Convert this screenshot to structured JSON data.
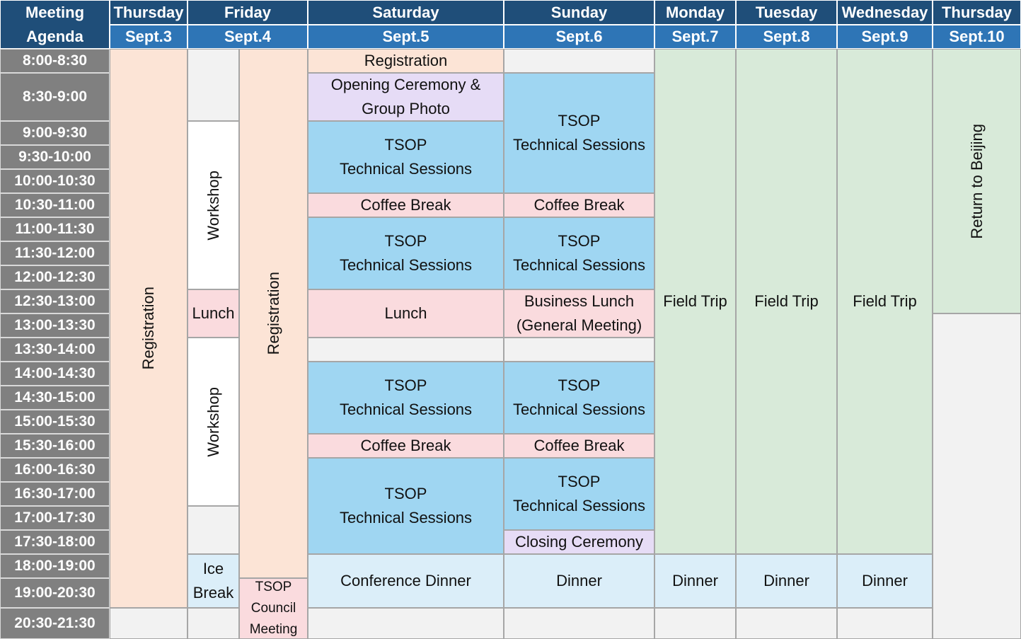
{
  "header": {
    "corner": "Meeting\nAgenda",
    "days": [
      {
        "day": "Thursday",
        "date": "Sept.3"
      },
      {
        "day": "Friday",
        "date": "Sept.4"
      },
      {
        "day": "Saturday",
        "date": "Sept.5"
      },
      {
        "day": "Sunday",
        "date": "Sept.6"
      },
      {
        "day": "Monday",
        "date": "Sept.7"
      },
      {
        "day": "Tuesday",
        "date": "Sept.8"
      },
      {
        "day": "Wednesday",
        "date": "Sept.9"
      },
      {
        "day": "Thursday",
        "date": "Sept.10"
      }
    ]
  },
  "times": [
    "8:00-8:30",
    "8:30-9:00",
    "9:00-9:30",
    "9:30-10:00",
    "10:00-10:30",
    "10:30-11:00",
    "11:00-11:30",
    "11:30-12:00",
    "12:00-12:30",
    "12:30-13:00",
    "13:00-13:30",
    "13:30-14:00",
    "14:00-14:30",
    "14:30-15:00",
    "15:00-15:30",
    "15:30-16:00",
    "16:00-16:30",
    "16:30-17:00",
    "17:00-17:30",
    "17:30-18:00",
    "18:00-19:00",
    "19:00-20:30",
    "20:30-21:30"
  ],
  "schedule": {
    "thursday_3": [
      "Registration"
    ],
    "friday_a": [
      "Workshop",
      "Lunch",
      "Workshop",
      "Ice\nBreak"
    ],
    "friday_b": [
      "Registration",
      "TSOP\nCouncil\nMeeting"
    ],
    "saturday": [
      "Registration",
      "Opening Ceremony &\nGroup Photo",
      "TSOP\nTechnical Sessions",
      "Coffee Break",
      "TSOP\nTechnical Sessions",
      "Lunch",
      "TSOP\nTechnical Sessions",
      "Coffee Break",
      "TSOP\nTechnical Sessions",
      "Conference Dinner"
    ],
    "sunday": [
      "TSOP\nTechnical Sessions",
      "Coffee Break",
      "TSOP\nTechnical Sessions",
      "Business Lunch\n(General Meeting)",
      "TSOP\nTechnical Sessions",
      "Coffee Break",
      "TSOP\nTechnical Sessions",
      "Closing Ceremony",
      "Dinner"
    ],
    "monday": [
      "Field Trip",
      "Dinner"
    ],
    "tuesday": [
      "Field Trip",
      "Dinner"
    ],
    "wednesday": [
      "Field Trip",
      "Dinner"
    ],
    "thursday_10": [
      "Return to Beijing"
    ]
  }
}
